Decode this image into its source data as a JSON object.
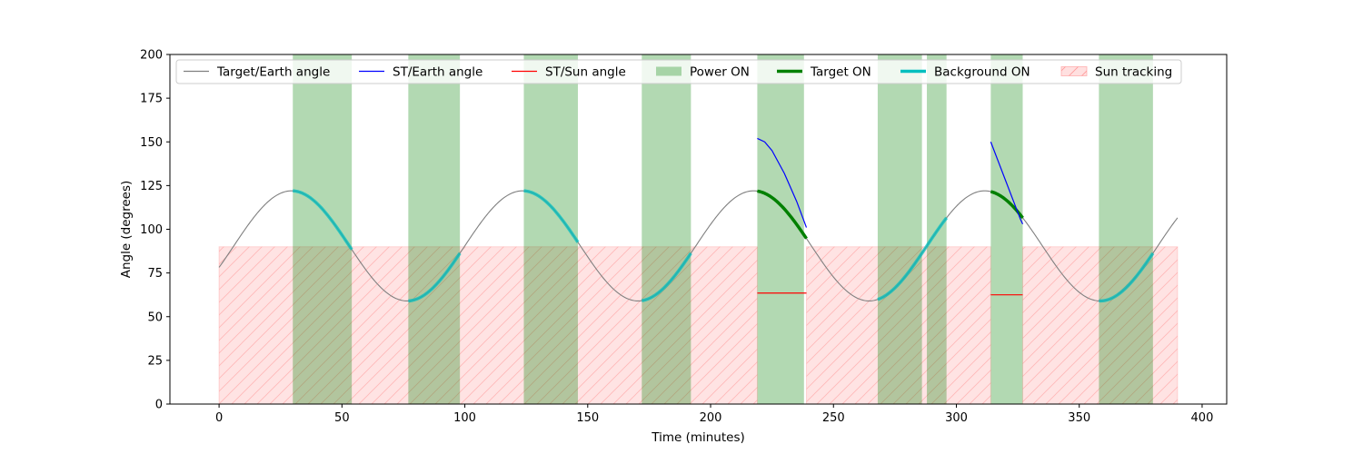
{
  "chart_data": {
    "type": "line",
    "xlabel": "Time (minutes)",
    "ylabel": "Angle (degrees)",
    "xlim": [
      -20,
      410
    ],
    "ylim": [
      0,
      200
    ],
    "xticks": [
      0,
      50,
      100,
      150,
      200,
      250,
      300,
      350,
      400
    ],
    "yticks": [
      0,
      25,
      50,
      75,
      100,
      125,
      150,
      175,
      200
    ],
    "grid": false,
    "legend_position": "top",
    "legend": [
      {
        "label": "Target/Earth angle",
        "kind": "line",
        "color": "#808080"
      },
      {
        "label": "ST/Earth angle",
        "kind": "line",
        "color": "#0000ff"
      },
      {
        "label": "ST/Sun angle",
        "kind": "line",
        "color": "#ff0000"
      },
      {
        "label": "Power ON",
        "kind": "patch",
        "color": "#008000"
      },
      {
        "label": "Target ON",
        "kind": "thickline",
        "color": "#008000"
      },
      {
        "label": "Background ON",
        "kind": "thickline",
        "color": "#00bfbf"
      },
      {
        "label": "Sun tracking",
        "kind": "hatch",
        "color": "#ff9999"
      }
    ],
    "target_earth_angle": {
      "t_start": 0,
      "t_end": 390,
      "mean": 90.5,
      "amplitude": 31.5,
      "period_min": 94,
      "peak_time_min": 29.5
    },
    "power_on_intervals": [
      [
        30,
        54
      ],
      [
        77,
        98
      ],
      [
        124,
        146
      ],
      [
        172,
        192
      ],
      [
        219,
        238
      ],
      [
        268,
        286
      ],
      [
        288,
        296
      ],
      [
        314,
        327
      ],
      [
        358,
        380
      ]
    ],
    "target_on_intervals": [
      [
        219,
        239
      ],
      [
        314,
        327
      ]
    ],
    "background_on_intervals": [
      [
        30,
        54
      ],
      [
        77,
        98
      ],
      [
        124,
        146
      ],
      [
        172,
        192
      ],
      [
        268,
        296
      ],
      [
        358,
        380
      ]
    ],
    "sun_tracking": {
      "intervals": [
        [
          0,
          219
        ],
        [
          239,
          314
        ],
        [
          327,
          390
        ]
      ],
      "level": 90
    },
    "st_earth_angle": [
      {
        "x": [
          219,
          222,
          225,
          230,
          235,
          239
        ],
        "y": [
          152,
          150,
          145,
          132,
          116,
          101
        ]
      },
      {
        "x": [
          314,
          317,
          320,
          323,
          326,
          327
        ],
        "y": [
          150,
          139,
          128,
          117,
          106,
          103
        ]
      }
    ],
    "st_sun_angle": [
      {
        "x": [
          219,
          239
        ],
        "y": [
          63.5,
          63.5
        ]
      },
      {
        "x": [
          314,
          327
        ],
        "y": [
          62.5,
          62.5
        ]
      }
    ]
  }
}
